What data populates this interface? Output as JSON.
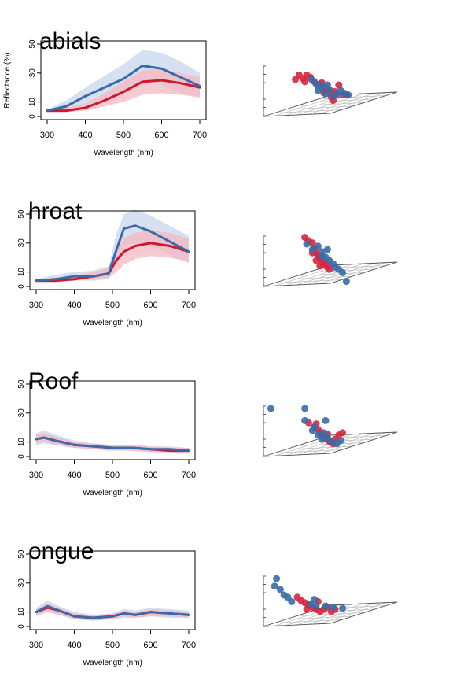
{
  "colors": {
    "series_blue": "#3a6aa8",
    "series_red": "#cc1731",
    "band_blue": "#c7d6ec",
    "band_red": "#f4b8c0",
    "point_blue": "#3a6aa8",
    "point_red": "#d7263d",
    "axis": "#000000",
    "grid3d": "#bbbbbb"
  },
  "chart_data": [
    {
      "type": "line",
      "title": "abials",
      "xlabel": "Wavelength (nm)",
      "ylabel": "Reflectance (%)",
      "xlim": [
        300,
        700
      ],
      "ylim": [
        0,
        50
      ],
      "xticks": [
        "300",
        "400",
        "500",
        "600",
        "700"
      ],
      "yticks": [
        "0",
        "10",
        "30",
        "50"
      ],
      "x": [
        300,
        350,
        400,
        450,
        500,
        550,
        600,
        650,
        700
      ],
      "series": [
        {
          "color": "blue",
          "values": [
            4,
            7,
            14,
            20,
            26,
            35,
            33,
            27,
            21
          ],
          "lower": [
            3,
            4,
            8,
            12,
            16,
            24,
            22,
            16,
            14
          ],
          "upper": [
            5,
            11,
            20,
            28,
            36,
            46,
            44,
            38,
            30
          ]
        },
        {
          "color": "red",
          "values": [
            4,
            4,
            6,
            11,
            17,
            24,
            25,
            23,
            20
          ],
          "lower": [
            3,
            3,
            4,
            7,
            10,
            15,
            16,
            15,
            13
          ],
          "upper": [
            5,
            6,
            9,
            16,
            24,
            32,
            33,
            30,
            27
          ]
        }
      ],
      "scatter3d": {
        "blue": [
          [
            0.55,
            0.3
          ],
          [
            0.6,
            0.38
          ],
          [
            0.62,
            0.5
          ],
          [
            0.66,
            0.44
          ],
          [
            0.7,
            0.56
          ],
          [
            0.74,
            0.48
          ],
          [
            0.78,
            0.6
          ],
          [
            0.82,
            0.58
          ],
          [
            0.86,
            0.5
          ],
          [
            0.9,
            0.55
          ],
          [
            0.94,
            0.58
          ],
          [
            0.64,
            0.4
          ],
          [
            0.72,
            0.4
          ]
        ],
        "red": [
          [
            0.38,
            0.3
          ],
          [
            0.42,
            0.22
          ],
          [
            0.46,
            0.28
          ],
          [
            0.5,
            0.22
          ],
          [
            0.54,
            0.26
          ],
          [
            0.58,
            0.34
          ],
          [
            0.62,
            0.42
          ],
          [
            0.66,
            0.36
          ],
          [
            0.7,
            0.46
          ],
          [
            0.74,
            0.52
          ],
          [
            0.76,
            0.62
          ],
          [
            0.8,
            0.52
          ],
          [
            0.84,
            0.4
          ],
          [
            0.88,
            0.58
          ],
          [
            0.92,
            0.58
          ],
          [
            0.48,
            0.34
          ],
          [
            0.68,
            0.54
          ],
          [
            0.78,
            0.68
          ]
        ]
      }
    },
    {
      "type": "line",
      "title": "hroat",
      "xlabel": "Wavelength (nm)",
      "ylabel": "Reflectance (%)",
      "xlim": [
        300,
        700
      ],
      "ylim": [
        0,
        50
      ],
      "xticks": [
        "300",
        "400",
        "500",
        "600",
        "700"
      ],
      "yticks": [
        "0",
        "10",
        "30",
        "50"
      ],
      "x": [
        300,
        350,
        400,
        450,
        490,
        510,
        530,
        560,
        600,
        650,
        700
      ],
      "series": [
        {
          "color": "blue",
          "values": [
            4,
            5,
            7,
            7,
            9,
            25,
            40,
            42,
            38,
            31,
            24
          ],
          "lower": [
            3,
            3,
            4,
            4,
            5,
            14,
            28,
            30,
            28,
            22,
            16
          ],
          "upper": [
            5,
            8,
            10,
            11,
            14,
            36,
            50,
            53,
            49,
            42,
            35
          ]
        },
        {
          "color": "red",
          "values": [
            4,
            4,
            5,
            7,
            9,
            18,
            24,
            28,
            30,
            28,
            24
          ],
          "lower": [
            3,
            3,
            4,
            5,
            6,
            10,
            15,
            19,
            21,
            20,
            17
          ],
          "upper": [
            5,
            6,
            7,
            10,
            13,
            26,
            33,
            37,
            39,
            37,
            33
          ]
        }
      ],
      "scatter3d": {
        "blue": [
          [
            0.5,
            0.2
          ],
          [
            0.56,
            0.3
          ],
          [
            0.62,
            0.24
          ],
          [
            0.66,
            0.34
          ],
          [
            0.7,
            0.44
          ],
          [
            0.74,
            0.5
          ],
          [
            0.78,
            0.56
          ],
          [
            0.8,
            0.62
          ],
          [
            0.84,
            0.66
          ],
          [
            0.88,
            0.72
          ],
          [
            0.92,
            0.88
          ],
          [
            0.72,
            0.3
          ],
          [
            0.66,
            0.42
          ]
        ],
        "red": [
          [
            0.48,
            0.08
          ],
          [
            0.52,
            0.14
          ],
          [
            0.56,
            0.18
          ],
          [
            0.58,
            0.28
          ],
          [
            0.6,
            0.36
          ],
          [
            0.62,
            0.4
          ],
          [
            0.64,
            0.46
          ],
          [
            0.66,
            0.52
          ],
          [
            0.68,
            0.58
          ],
          [
            0.7,
            0.54
          ],
          [
            0.72,
            0.62
          ],
          [
            0.74,
            0.66
          ],
          [
            0.6,
            0.5
          ],
          [
            0.64,
            0.6
          ],
          [
            0.56,
            0.36
          ]
        ]
      }
    },
    {
      "type": "line",
      "title": "Roof",
      "xlabel": "Wavelength (nm)",
      "ylabel": "Reflectance (%)",
      "xlim": [
        300,
        700
      ],
      "ylim": [
        0,
        50
      ],
      "xticks": [
        "300",
        "400",
        "500",
        "600",
        "700"
      ],
      "yticks": [
        "0",
        "10",
        "30",
        "50"
      ],
      "x": [
        300,
        320,
        350,
        400,
        450,
        500,
        550,
        600,
        650,
        700
      ],
      "series": [
        {
          "color": "blue",
          "values": [
            12,
            13,
            11,
            8,
            7,
            6,
            6,
            5,
            5,
            4
          ],
          "lower": [
            8,
            9,
            8,
            6,
            5,
            4,
            4,
            3,
            3,
            2
          ],
          "upper": [
            16,
            18,
            15,
            11,
            9,
            8,
            8,
            7,
            7,
            6
          ]
        },
        {
          "color": "red",
          "values": [
            12,
            13,
            11,
            8,
            7,
            6,
            6,
            5,
            4,
            4
          ],
          "lower": [
            9,
            10,
            8,
            6,
            5,
            4,
            4,
            3,
            3,
            3
          ],
          "upper": [
            15,
            16,
            14,
            10,
            9,
            8,
            8,
            7,
            6,
            6
          ]
        }
      ],
      "scatter3d": {
        "blue": [
          [
            0.12,
            0.1
          ],
          [
            0.48,
            0.1
          ],
          [
            0.48,
            0.32
          ],
          [
            0.7,
            0.32
          ],
          [
            0.56,
            0.5
          ],
          [
            0.62,
            0.58
          ],
          [
            0.66,
            0.66
          ],
          [
            0.72,
            0.62
          ],
          [
            0.76,
            0.7
          ],
          [
            0.82,
            0.74
          ],
          [
            0.86,
            0.68
          ],
          [
            0.58,
            0.44
          ],
          [
            0.68,
            0.54
          ]
        ],
        "red": [
          [
            0.52,
            0.36
          ],
          [
            0.58,
            0.44
          ],
          [
            0.62,
            0.48
          ],
          [
            0.64,
            0.54
          ],
          [
            0.66,
            0.6
          ],
          [
            0.7,
            0.64
          ],
          [
            0.74,
            0.7
          ],
          [
            0.78,
            0.74
          ],
          [
            0.8,
            0.66
          ],
          [
            0.84,
            0.58
          ],
          [
            0.88,
            0.54
          ],
          [
            0.72,
            0.56
          ],
          [
            0.6,
            0.38
          ]
        ]
      }
    },
    {
      "type": "line",
      "title": "ongue",
      "xlabel": "Wavelength (nm)",
      "ylabel": "Reflectance (%)",
      "xlim": [
        300,
        700
      ],
      "ylim": [
        0,
        50
      ],
      "xticks": [
        "300",
        "400",
        "500",
        "600",
        "700"
      ],
      "yticks": [
        "0",
        "10",
        "30",
        "50"
      ],
      "x": [
        300,
        330,
        360,
        400,
        450,
        500,
        530,
        560,
        600,
        650,
        700
      ],
      "series": [
        {
          "color": "blue",
          "values": [
            10,
            14,
            11,
            7,
            6,
            7,
            9,
            8,
            10,
            9,
            8
          ],
          "lower": [
            7,
            10,
            8,
            5,
            4,
            5,
            6,
            6,
            7,
            6,
            6
          ],
          "upper": [
            13,
            18,
            14,
            10,
            8,
            9,
            12,
            11,
            13,
            12,
            11
          ]
        },
        {
          "color": "red",
          "values": [
            10,
            13,
            11,
            7,
            6,
            7,
            9,
            8,
            10,
            9,
            8
          ],
          "lower": [
            8,
            10,
            8,
            5,
            4,
            5,
            7,
            6,
            7,
            7,
            6
          ],
          "upper": [
            12,
            16,
            13,
            9,
            8,
            9,
            11,
            10,
            12,
            11,
            10
          ]
        }
      ],
      "scatter3d": {
        "blue": [
          [
            0.18,
            0.1
          ],
          [
            0.16,
            0.24
          ],
          [
            0.22,
            0.3
          ],
          [
            0.26,
            0.4
          ],
          [
            0.3,
            0.44
          ],
          [
            0.34,
            0.52
          ],
          [
            0.54,
            0.56
          ],
          [
            0.6,
            0.6
          ],
          [
            0.7,
            0.6
          ],
          [
            0.78,
            0.62
          ],
          [
            0.88,
            0.64
          ],
          [
            0.58,
            0.48
          ]
        ],
        "red": [
          [
            0.4,
            0.44
          ],
          [
            0.44,
            0.5
          ],
          [
            0.48,
            0.54
          ],
          [
            0.52,
            0.58
          ],
          [
            0.56,
            0.62
          ],
          [
            0.6,
            0.66
          ],
          [
            0.64,
            0.7
          ],
          [
            0.68,
            0.66
          ],
          [
            0.72,
            0.62
          ],
          [
            0.76,
            0.7
          ],
          [
            0.8,
            0.66
          ],
          [
            0.5,
            0.66
          ],
          [
            0.62,
            0.52
          ]
        ]
      }
    }
  ]
}
